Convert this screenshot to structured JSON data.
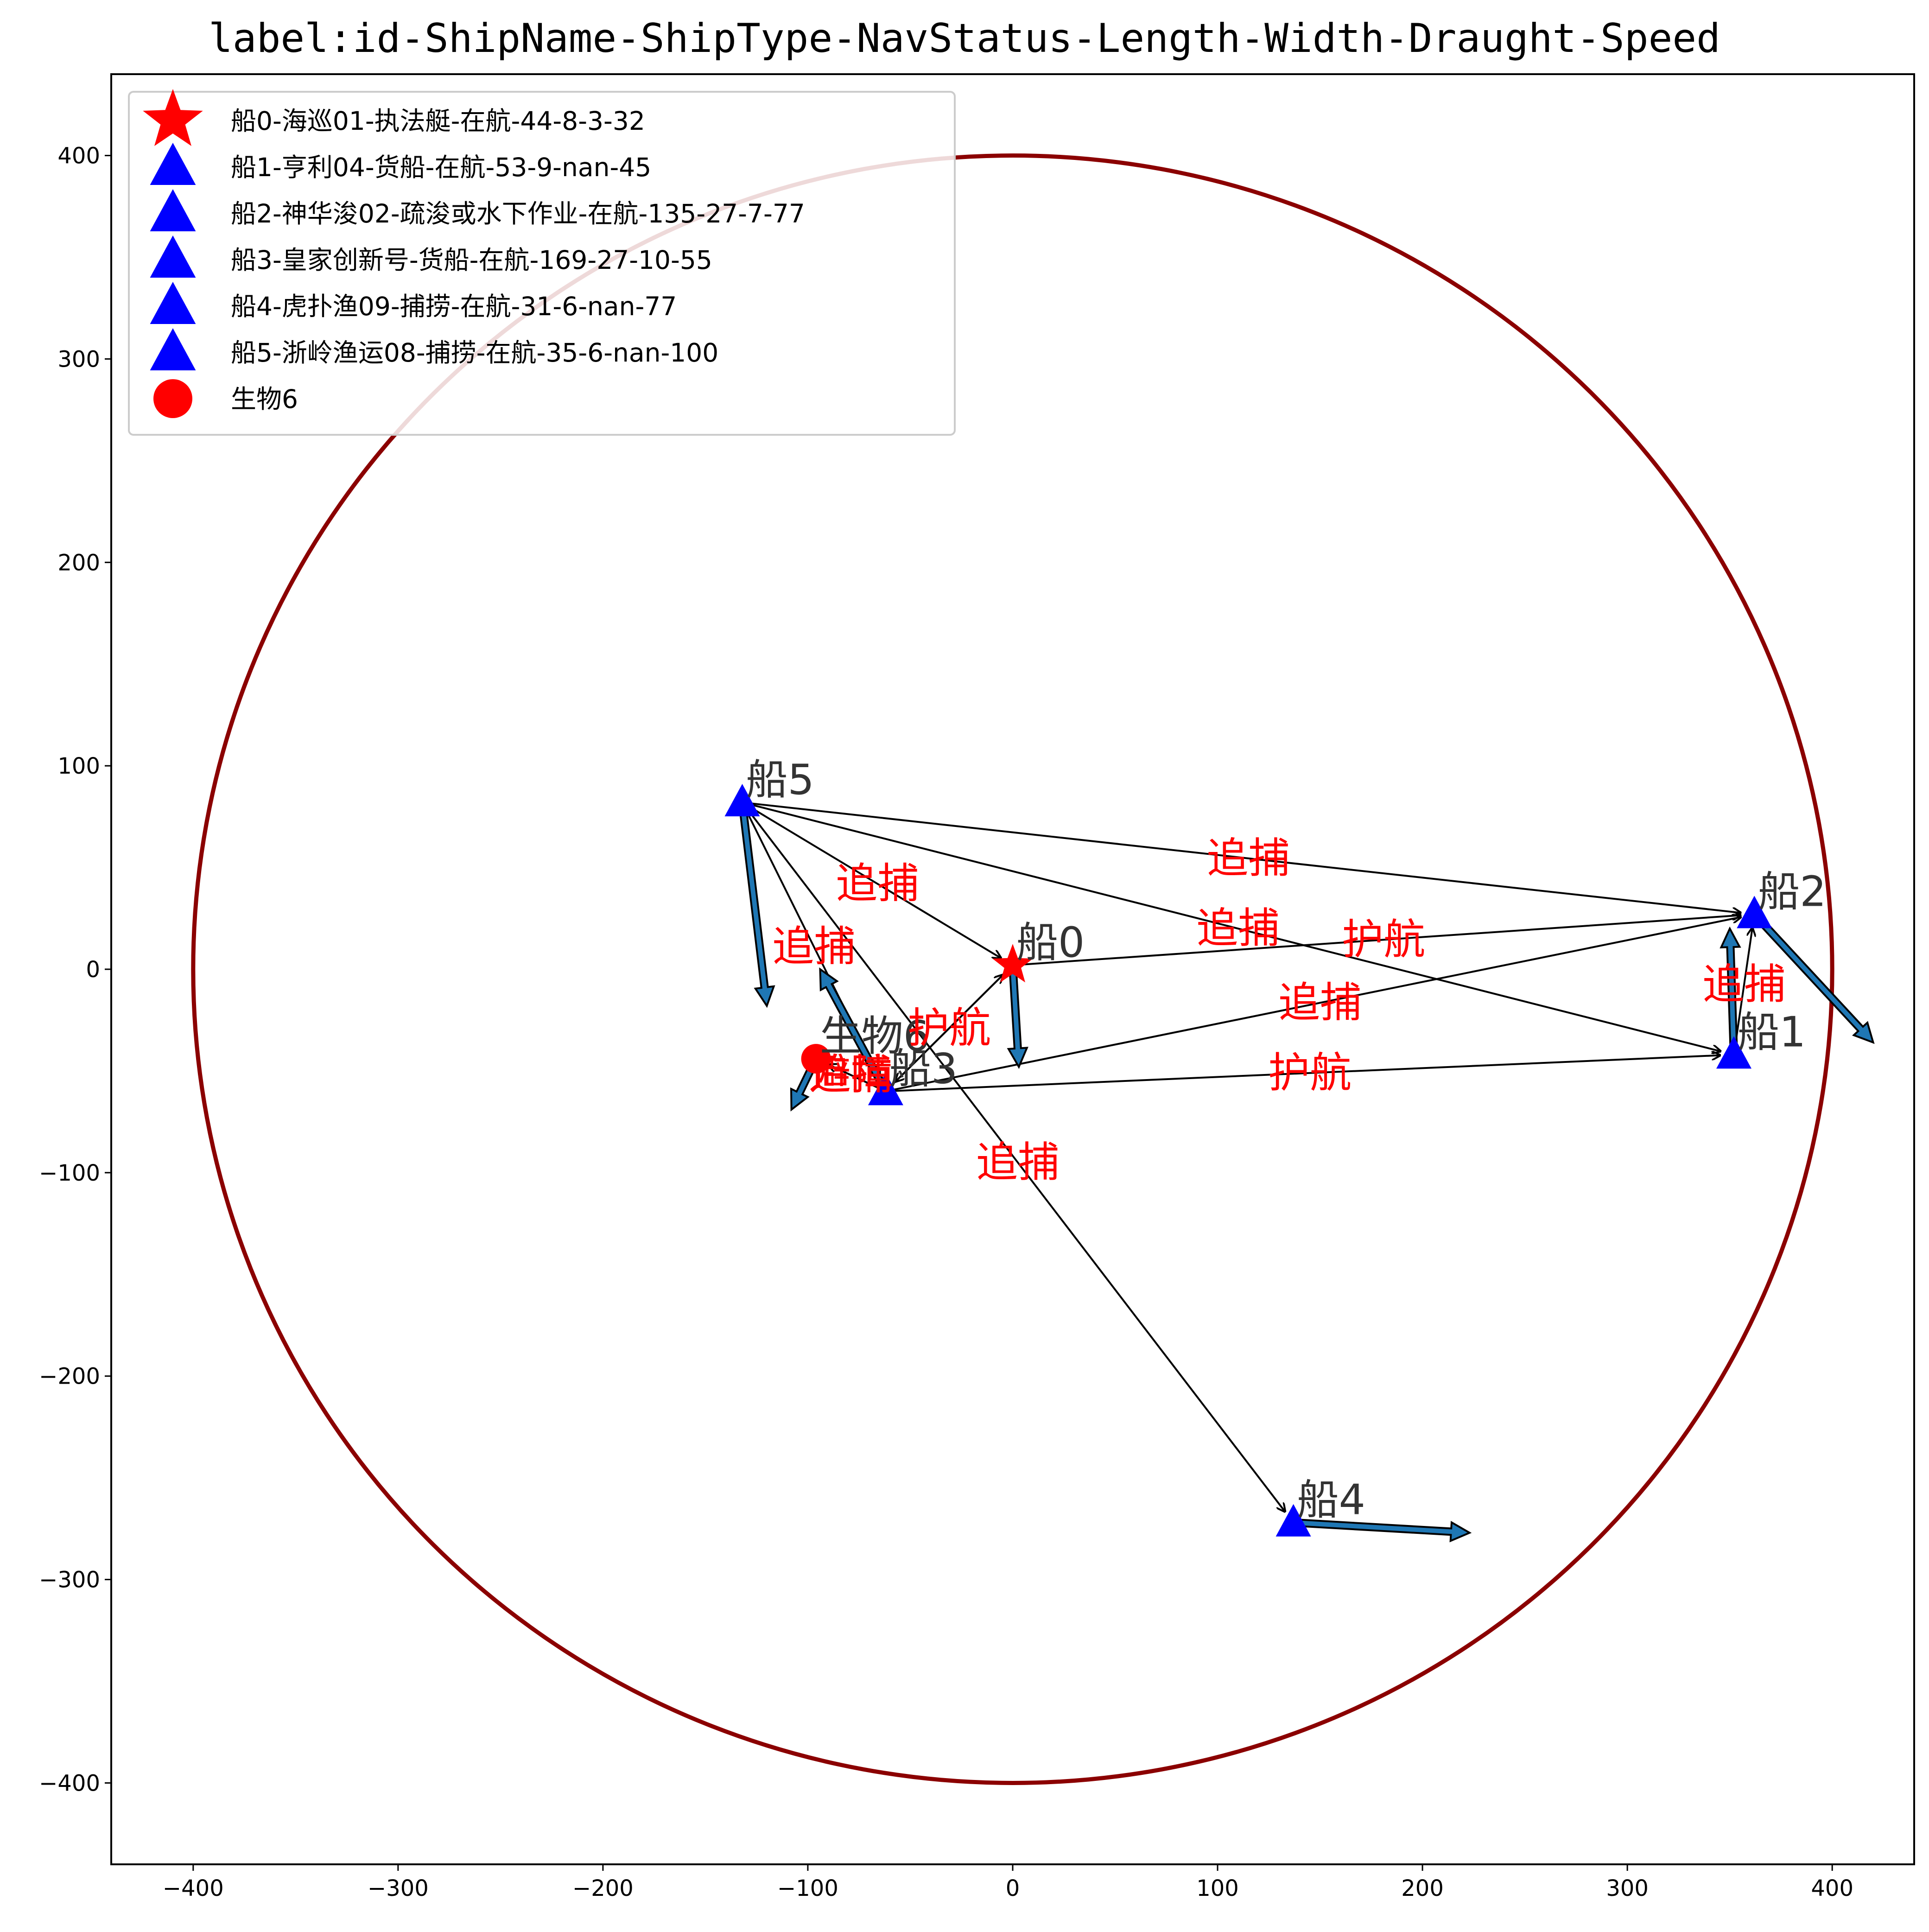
{
  "chart_data": {
    "type": "scatter",
    "title": "label:id-ShipName-ShipType-NavStatus-Length-Width-Draught-Speed",
    "xlabel": "",
    "ylabel": "",
    "xlim": [
      -440,
      440
    ],
    "ylim": [
      -440,
      440
    ],
    "xticks": [
      -400,
      -300,
      -200,
      -100,
      0,
      100,
      200,
      300,
      400
    ],
    "yticks": [
      -400,
      -300,
      -200,
      -100,
      0,
      100,
      200,
      300,
      400
    ],
    "grid": false,
    "legend_position": "upper-left",
    "range_circle": {
      "center": [
        0,
        0
      ],
      "radius": 400,
      "color": "#8b0000"
    },
    "colors": {
      "own_ship": "#ff0000",
      "ship": "#0000ff",
      "organism": "#ff0000",
      "relation_text": "#ff0000",
      "vector_fill": "#1f77b4"
    },
    "nodes": [
      {
        "id": "n0",
        "label": "船0",
        "legend": "船0-海巡01-执法艇-在航-44-8-3-32",
        "marker": "star",
        "color": "#ff0000",
        "x": 0,
        "y": 2,
        "vector": [
          3,
          -50
        ]
      },
      {
        "id": "n1",
        "label": "船1",
        "legend": "船1-亨利04-货船-在航-53-9-nan-45",
        "marker": "triangle",
        "color": "#0000ff",
        "x": 352,
        "y": -42,
        "vector": [
          -2,
          62
        ]
      },
      {
        "id": "n2",
        "label": "船2",
        "legend": "船2-神华浚02-疏浚或水下作业-在航-135-27-7-77",
        "marker": "triangle",
        "color": "#0000ff",
        "x": 362,
        "y": 27,
        "vector": [
          58,
          -63
        ]
      },
      {
        "id": "n3",
        "label": "船3",
        "legend": "船3-皇家创新号-货船-在航-169-27-10-55",
        "marker": "triangle",
        "color": "#0000ff",
        "x": -62,
        "y": -60,
        "vector": [
          -32,
          60
        ]
      },
      {
        "id": "n4",
        "label": "船4",
        "legend": "船4-虎扑渔09-捕捞-在航-31-6-nan-77",
        "marker": "triangle",
        "color": "#0000ff",
        "x": 137,
        "y": -272,
        "vector": [
          86,
          -5
        ]
      },
      {
        "id": "n5",
        "label": "船5",
        "legend": "船5-浙岭渔运08-捕捞-在航-35-6-nan-100",
        "marker": "triangle",
        "color": "#0000ff",
        "x": -132,
        "y": 82,
        "vector": [
          12,
          -100
        ]
      },
      {
        "id": "n6",
        "label": "生物6",
        "legend": "生物6",
        "marker": "circle",
        "color": "#ff0000",
        "x": -96,
        "y": -44,
        "vector": [
          -12,
          -25
        ]
      }
    ],
    "relations": [
      {
        "from": "n5",
        "to": "n2",
        "label": "追捕"
      },
      {
        "from": "n5",
        "to": "n1",
        "label": "追捕"
      },
      {
        "from": "n5",
        "to": "n3",
        "label": "追捕"
      },
      {
        "from": "n5",
        "to": "n0",
        "label": "追捕"
      },
      {
        "from": "n5",
        "to": "n4",
        "label": "追捕"
      },
      {
        "from": "n0",
        "to": "n2",
        "label": "护航"
      },
      {
        "from": "n3",
        "to": "n2",
        "label": "追捕"
      },
      {
        "from": "n3",
        "to": "n1",
        "label": "护航"
      },
      {
        "from": "n1",
        "to": "n2",
        "label": "追捕"
      },
      {
        "from": "n3",
        "to": "n0",
        "label": "护航"
      },
      {
        "from": "n3",
        "to": "n6",
        "label": "避障"
      },
      {
        "from": "n0",
        "to": "n3",
        "label": "护航"
      },
      {
        "from": "n3",
        "to": "n6",
        "label": "追捕"
      }
    ]
  }
}
